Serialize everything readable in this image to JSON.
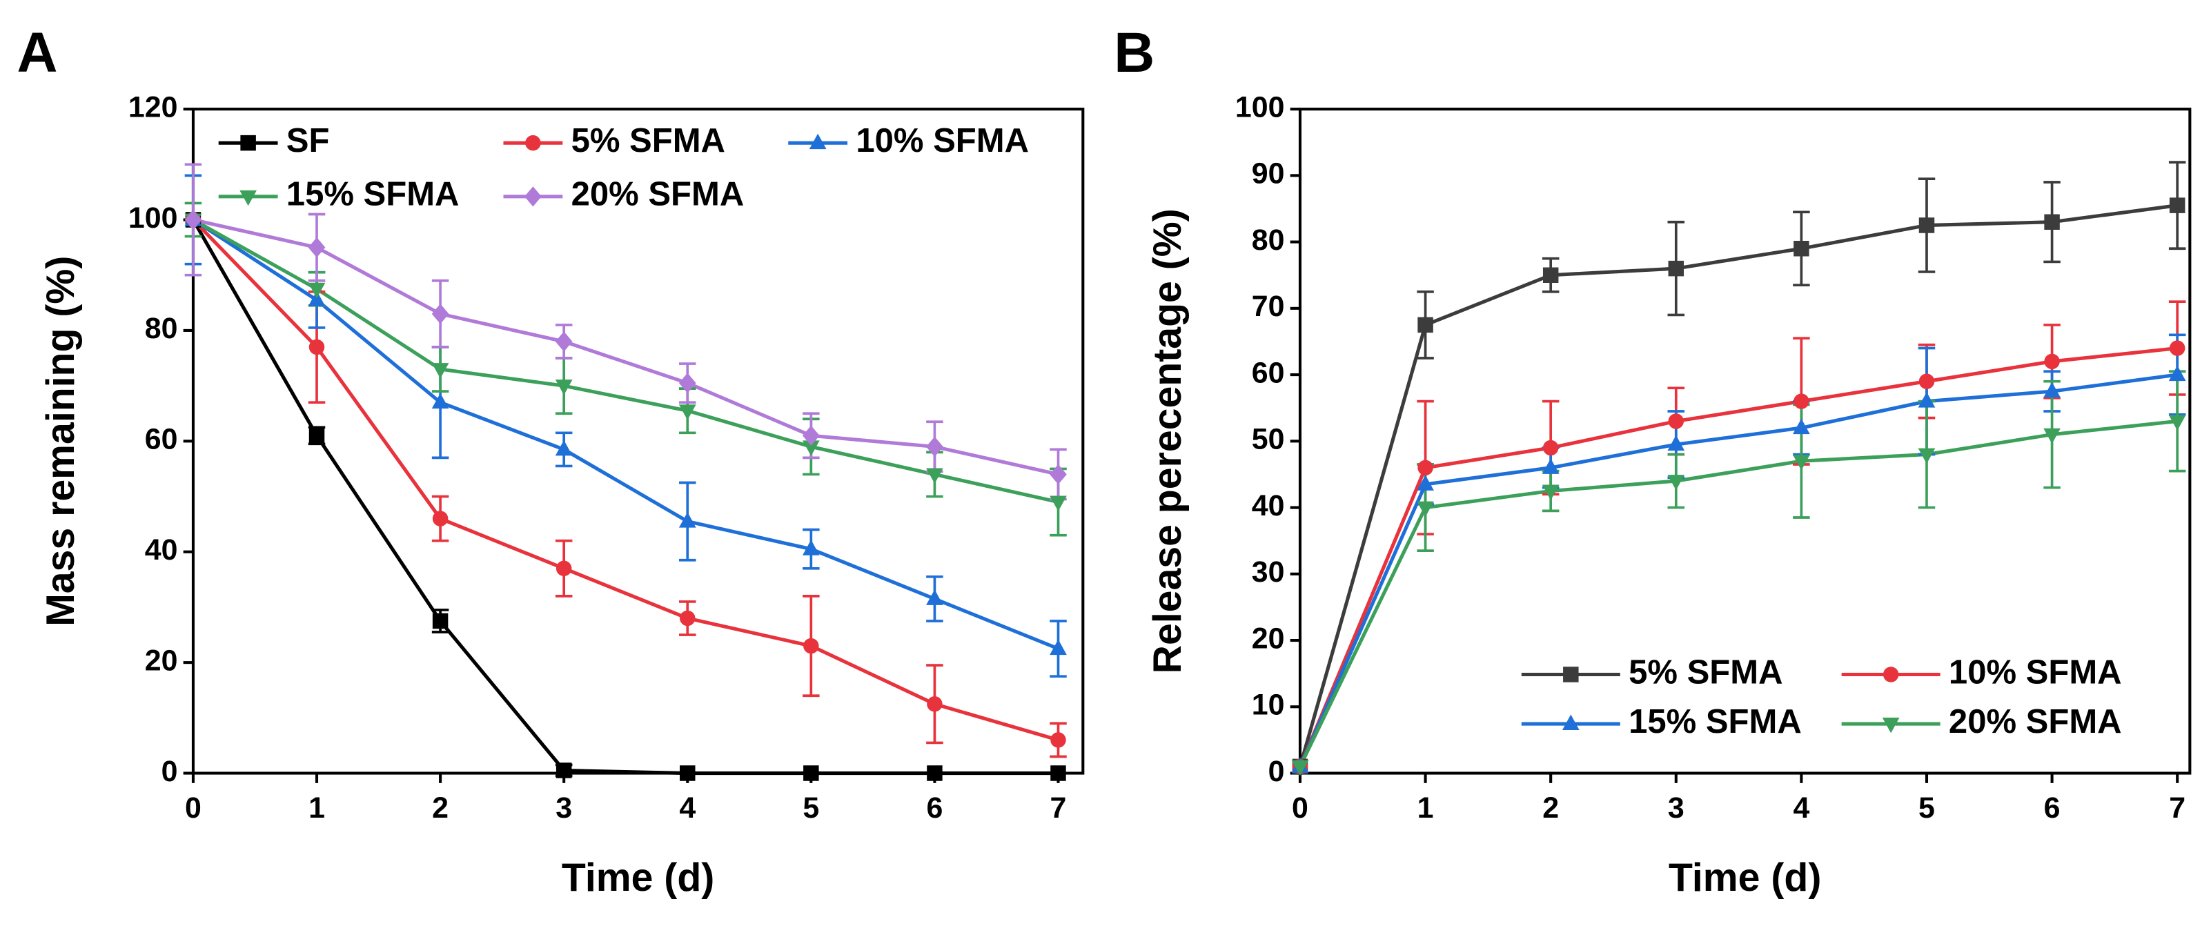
{
  "chart_data": [
    {
      "type": "line",
      "panel_label": "A",
      "xlabel": "Time (d)",
      "ylabel": "Mass remaining (%)",
      "x": [
        0,
        1,
        2,
        3,
        4,
        5,
        6,
        7
      ],
      "xlim": [
        0,
        7.2
      ],
      "xticks": [
        0,
        1,
        2,
        3,
        4,
        5,
        6,
        7
      ],
      "ylim": [
        0,
        120
      ],
      "yticks": [
        0,
        20,
        40,
        60,
        80,
        100,
        120
      ],
      "legend": "upper left",
      "legend_columns": 3,
      "series": [
        {
          "name": "SF",
          "color": "#000000",
          "marker": "square",
          "values": [
            100,
            61,
            27.5,
            0.5,
            0,
            0,
            0,
            0
          ],
          "errors": [
            0,
            1.5,
            2,
            1,
            0,
            0,
            0,
            0
          ]
        },
        {
          "name": "5% SFMA",
          "color": "#e8323c",
          "marker": "circle",
          "values": [
            100,
            77,
            46,
            37,
            28,
            23,
            12.5,
            6
          ],
          "errors": [
            0,
            10,
            4,
            5,
            3,
            9,
            7,
            3
          ]
        },
        {
          "name": "10% SFMA",
          "color": "#1f6fd8",
          "marker": "triangle-up",
          "values": [
            100,
            85.5,
            67,
            58.5,
            45.5,
            40.5,
            31.5,
            22.5
          ],
          "errors": [
            8,
            5,
            10,
            3,
            7,
            3.5,
            4,
            5
          ]
        },
        {
          "name": "15% SFMA",
          "color": "#3ca05a",
          "marker": "triangle-down",
          "values": [
            100,
            87.5,
            73,
            70,
            65.5,
            59,
            54,
            49
          ],
          "errors": [
            3,
            3,
            4,
            5,
            4,
            5,
            4,
            6
          ]
        },
        {
          "name": "20% SFMA",
          "color": "#b07ad8",
          "marker": "diamond",
          "values": [
            100,
            95,
            83,
            78,
            70.5,
            61,
            59,
            54
          ],
          "errors": [
            10,
            6,
            6,
            3,
            3.5,
            4,
            4.5,
            4.5
          ]
        }
      ]
    },
    {
      "type": "line",
      "panel_label": "B",
      "xlabel": "Time (d)",
      "ylabel": "Release perecentage (%)",
      "x": [
        0,
        1,
        2,
        3,
        4,
        5,
        6,
        7
      ],
      "xlim": [
        0,
        7.1
      ],
      "xticks": [
        0,
        1,
        2,
        3,
        4,
        5,
        6,
        7
      ],
      "ylim": [
        0,
        100
      ],
      "yticks": [
        0,
        10,
        20,
        30,
        40,
        50,
        60,
        70,
        80,
        90,
        100
      ],
      "legend": "lower right",
      "legend_columns": 2,
      "series": [
        {
          "name": "5% SFMA",
          "color": "#3c3c3c",
          "marker": "square",
          "values": [
            1,
            67.5,
            75,
            76,
            79,
            82.5,
            83,
            85.5
          ],
          "errors": [
            0,
            5,
            2.5,
            7,
            5.5,
            7,
            6,
            6.5
          ]
        },
        {
          "name": "10% SFMA",
          "color": "#e8323c",
          "marker": "circle",
          "values": [
            1,
            46,
            49,
            53,
            56,
            59,
            62,
            64
          ],
          "errors": [
            0,
            10,
            7,
            5,
            9.5,
            5.5,
            5.5,
            7
          ]
        },
        {
          "name": "15% SFMA",
          "color": "#1f6fd8",
          "marker": "triangle-up",
          "values": [
            1,
            43.5,
            46,
            49.5,
            52,
            56,
            57.5,
            60
          ],
          "errors": [
            0,
            3,
            3,
            5,
            4,
            8,
            3,
            6
          ]
        },
        {
          "name": "20% SFMA",
          "color": "#3ca05a",
          "marker": "triangle-down",
          "values": [
            1,
            40,
            42.5,
            44,
            47,
            48,
            51,
            53
          ],
          "errors": [
            0,
            6.5,
            3,
            4,
            8.5,
            8,
            8,
            7.5
          ]
        }
      ]
    }
  ]
}
